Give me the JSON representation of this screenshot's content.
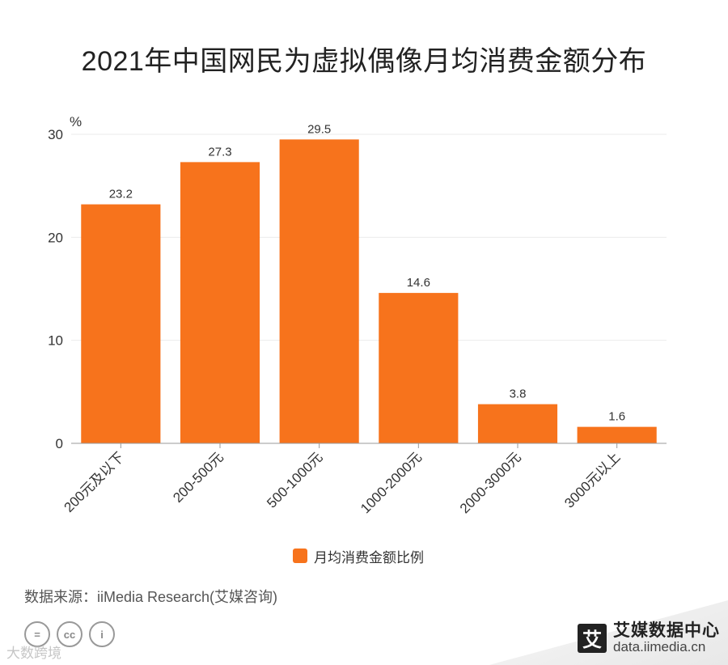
{
  "title": "2021年中国网民为虚拟偶像月均消费金额分布",
  "chart_data": {
    "type": "bar",
    "title": "2021年中国网民为虚拟偶像月均消费金额分布",
    "ylabel": "%",
    "categories": [
      "200元及以下",
      "200-500元",
      "500-1000元",
      "1000-2000元",
      "2000-3000元",
      "3000元以上"
    ],
    "series": [
      {
        "name": "月均消费金额比例",
        "values": [
          23.2,
          27.3,
          29.5,
          14.6,
          3.8,
          1.6
        ],
        "color": "#f7731c"
      }
    ],
    "ylim": [
      0,
      30
    ],
    "yticks": [
      0,
      10,
      20,
      30
    ],
    "grid": true,
    "legend_position": "bottom"
  },
  "legend": {
    "label": "月均消费金额比例",
    "color": "#f7731c"
  },
  "source": "数据来源：iiMedia Research(艾媒咨询)",
  "license_icons": [
    "=",
    "cc",
    "i"
  ],
  "watermark": "大数跨境",
  "brand": {
    "name": "艾媒数据中心",
    "url": "data.iimedia.cn",
    "logo_char": "艾"
  }
}
